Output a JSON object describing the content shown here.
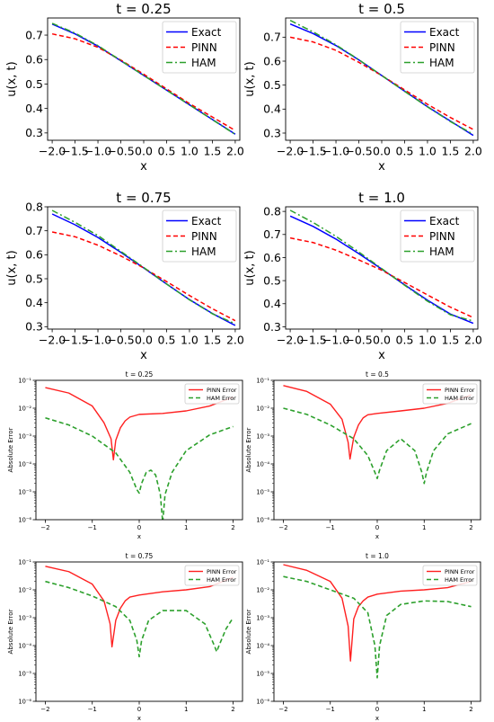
{
  "chart_data": [
    {
      "type": "line",
      "title": "t = 0.25",
      "xlabel": "x",
      "ylabel": "u(x, t)",
      "xlim": [
        -2.1,
        2.1
      ],
      "ylim": [
        0.27,
        0.77
      ],
      "xticks": [
        "-2.0",
        "-1.5",
        "-1.0",
        "-0.5",
        "0.0",
        "0.5",
        "1.0",
        "1.5",
        "2.0"
      ],
      "yticks": [
        "0.3",
        "0.4",
        "0.5",
        "0.6",
        "0.7"
      ],
      "legend": "top-right",
      "series": [
        {
          "name": "Exact",
          "color": "#0000ff",
          "style": "solid",
          "x": [
            -2.0,
            -1.5,
            -1.0,
            -0.5,
            0.0,
            0.5,
            1.0,
            1.5,
            2.0
          ],
          "y": [
            0.745,
            0.705,
            0.655,
            0.595,
            0.535,
            0.475,
            0.415,
            0.355,
            0.295
          ]
        },
        {
          "name": "PINN",
          "color": "#ff0000",
          "style": "dashed",
          "x": [
            -2.0,
            -1.5,
            -1.0,
            -0.5,
            0.0,
            0.5,
            1.0,
            1.5,
            2.0
          ],
          "y": [
            0.705,
            0.685,
            0.65,
            0.598,
            0.54,
            0.48,
            0.42,
            0.365,
            0.31
          ]
        },
        {
          "name": "HAM",
          "color": "#2ca02c",
          "style": "dashdot",
          "x": [
            -2.0,
            -1.5,
            -1.0,
            -0.5,
            0.0,
            0.5,
            1.0,
            1.5,
            2.0
          ],
          "y": [
            0.748,
            0.708,
            0.657,
            0.596,
            0.535,
            0.475,
            0.415,
            0.354,
            0.294
          ]
        }
      ]
    },
    {
      "type": "line",
      "title": "t = 0.5",
      "xlabel": "x",
      "ylabel": "u(x, t)",
      "xlim": [
        -2.1,
        2.1
      ],
      "ylim": [
        0.27,
        0.78
      ],
      "xticks": [
        "-2.0",
        "-1.5",
        "-1.0",
        "-0.5",
        "0.0",
        "0.5",
        "1.0",
        "1.5",
        "2.0"
      ],
      "yticks": [
        "0.3",
        "0.4",
        "0.5",
        "0.6",
        "0.7"
      ],
      "legend": "top-right",
      "series": [
        {
          "name": "Exact",
          "color": "#0000ff",
          "style": "solid",
          "x": [
            -2.0,
            -1.5,
            -1.0,
            -0.5,
            0.0,
            0.5,
            1.0,
            1.5,
            2.0
          ],
          "y": [
            0.755,
            0.715,
            0.665,
            0.605,
            0.54,
            0.475,
            0.41,
            0.35,
            0.29
          ]
        },
        {
          "name": "PINN",
          "color": "#ff0000",
          "style": "dashed",
          "x": [
            -2.0,
            -1.5,
            -1.0,
            -0.5,
            0.0,
            0.5,
            1.0,
            1.5,
            2.0
          ],
          "y": [
            0.7,
            0.68,
            0.645,
            0.595,
            0.54,
            0.48,
            0.42,
            0.365,
            0.315
          ]
        },
        {
          "name": "HAM",
          "color": "#2ca02c",
          "style": "dashdot",
          "x": [
            -2.0,
            -1.5,
            -1.0,
            -0.5,
            0.0,
            0.5,
            1.0,
            1.5,
            2.0
          ],
          "y": [
            0.77,
            0.722,
            0.668,
            0.606,
            0.54,
            0.474,
            0.409,
            0.348,
            0.295
          ]
        }
      ]
    },
    {
      "type": "line",
      "title": "t = 0.75",
      "xlabel": "x",
      "ylabel": "u(x, t)",
      "xlim": [
        -2.1,
        2.1
      ],
      "ylim": [
        0.29,
        0.8
      ],
      "xticks": [
        "-2.0",
        "-1.5",
        "-1.0",
        "-0.5",
        "0.0",
        "0.5",
        "1.0",
        "1.5",
        "2.0"
      ],
      "yticks": [
        "0.3",
        "0.4",
        "0.5",
        "0.6",
        "0.7",
        "0.8"
      ],
      "legend": "top-right",
      "series": [
        {
          "name": "Exact",
          "color": "#0000ff",
          "style": "solid",
          "x": [
            -2.0,
            -1.5,
            -1.0,
            -0.5,
            0.0,
            0.5,
            1.0,
            1.5,
            2.0
          ],
          "y": [
            0.77,
            0.725,
            0.672,
            0.61,
            0.545,
            0.478,
            0.413,
            0.355,
            0.305
          ]
        },
        {
          "name": "PINN",
          "color": "#ff0000",
          "style": "dashed",
          "x": [
            -2.0,
            -1.5,
            -1.0,
            -0.5,
            0.0,
            0.5,
            1.0,
            1.5,
            2.0
          ],
          "y": [
            0.695,
            0.675,
            0.64,
            0.595,
            0.545,
            0.488,
            0.43,
            0.375,
            0.325
          ]
        },
        {
          "name": "HAM",
          "color": "#2ca02c",
          "style": "dashdot",
          "x": [
            -2.0,
            -1.5,
            -1.0,
            -0.5,
            0.0,
            0.5,
            1.0,
            1.5,
            2.0
          ],
          "y": [
            0.785,
            0.735,
            0.68,
            0.614,
            0.547,
            0.478,
            0.412,
            0.354,
            0.312
          ]
        }
      ]
    },
    {
      "type": "line",
      "title": "t = 1.0",
      "xlabel": "x",
      "ylabel": "u(x, t)",
      "xlim": [
        -2.1,
        2.1
      ],
      "ylim": [
        0.29,
        0.82
      ],
      "xticks": [
        "-2.0",
        "-1.5",
        "-1.0",
        "-0.5",
        "0.0",
        "0.5",
        "1.0",
        "1.5",
        "2.0"
      ],
      "yticks": [
        "0.3",
        "0.4",
        "0.5",
        "0.6",
        "0.7",
        "0.8"
      ],
      "legend": "top-right",
      "series": [
        {
          "name": "Exact",
          "color": "#0000ff",
          "style": "solid",
          "x": [
            -2.0,
            -1.5,
            -1.0,
            -0.5,
            0.0,
            0.5,
            1.0,
            1.5,
            2.0
          ],
          "y": [
            0.78,
            0.735,
            0.68,
            0.617,
            0.55,
            0.482,
            0.415,
            0.355,
            0.315
          ]
        },
        {
          "name": "PINN",
          "color": "#ff0000",
          "style": "dashed",
          "x": [
            -2.0,
            -1.5,
            -1.0,
            -0.5,
            0.0,
            0.5,
            1.0,
            1.5,
            2.0
          ],
          "y": [
            0.685,
            0.665,
            0.632,
            0.59,
            0.545,
            0.492,
            0.438,
            0.385,
            0.34
          ]
        },
        {
          "name": "HAM",
          "color": "#2ca02c",
          "style": "dashdot",
          "x": [
            -2.0,
            -1.5,
            -1.0,
            -0.5,
            0.0,
            0.5,
            1.0,
            1.5,
            2.0
          ],
          "y": [
            0.805,
            0.752,
            0.692,
            0.624,
            0.552,
            0.48,
            0.411,
            0.352,
            0.325
          ]
        }
      ]
    },
    {
      "type": "line",
      "title": "t = 0.25",
      "xlabel": "x",
      "ylabel": "Absolute Error",
      "yscale": "log",
      "xlim": [
        -2.2,
        2.2
      ],
      "ylim": [
        1e-06,
        0.1
      ],
      "xticks": [
        "-2",
        "-1",
        "0",
        "1",
        "2"
      ],
      "yticks": [
        "10⁻⁶",
        "10⁻⁵",
        "10⁻⁴",
        "10⁻³",
        "10⁻²",
        "10⁻¹"
      ],
      "legend": "top-right",
      "series": [
        {
          "name": "PINN Error",
          "color": "#ff2020",
          "style": "solid",
          "x": [
            -2.0,
            -1.5,
            -1.0,
            -0.75,
            -0.6,
            -0.55,
            -0.5,
            -0.4,
            -0.3,
            -0.2,
            0.0,
            0.5,
            1.0,
            1.5,
            2.0
          ],
          "y": [
            0.055,
            0.035,
            0.012,
            0.003,
            0.0008,
            0.00014,
            0.0007,
            0.002,
            0.0035,
            0.0048,
            0.006,
            0.0065,
            0.008,
            0.012,
            0.025
          ]
        },
        {
          "name": "HAM Error",
          "color": "#2ca02c",
          "style": "dashed",
          "x": [
            -2.0,
            -1.5,
            -1.0,
            -0.5,
            -0.2,
            -0.05,
            0.0,
            0.05,
            0.15,
            0.25,
            0.35,
            0.45,
            0.5,
            0.55,
            0.7,
            1.0,
            1.5,
            2.0
          ],
          "y": [
            0.0045,
            0.0025,
            0.001,
            0.00025,
            5e-05,
            1.2e-05,
            9e-06,
            2e-05,
            5e-05,
            6e-05,
            4e-05,
            8e-06,
            8e-07,
            8e-06,
            5e-05,
            0.0003,
            0.0011,
            0.0022
          ]
        }
      ]
    },
    {
      "type": "line",
      "title": "t = 0.5",
      "xlabel": "x",
      "ylabel": "Absolute Error",
      "yscale": "log",
      "xlim": [
        -2.2,
        2.2
      ],
      "ylim": [
        1e-06,
        0.1
      ],
      "xticks": [
        "-2",
        "-1",
        "0",
        "1",
        "2"
      ],
      "yticks": [
        "10⁻⁶",
        "10⁻⁵",
        "10⁻⁴",
        "10⁻³",
        "10⁻²",
        "10⁻¹"
      ],
      "legend": "top-right",
      "series": [
        {
          "name": "PINN Error",
          "color": "#ff2020",
          "style": "solid",
          "x": [
            -2.0,
            -1.5,
            -1.0,
            -0.75,
            -0.62,
            -0.58,
            -0.5,
            -0.4,
            -0.3,
            -0.2,
            0.0,
            0.5,
            1.0,
            1.5,
            2.0
          ],
          "y": [
            0.065,
            0.04,
            0.014,
            0.004,
            0.0006,
            0.00015,
            0.0009,
            0.0025,
            0.0045,
            0.0058,
            0.0065,
            0.008,
            0.01,
            0.015,
            0.03
          ]
        },
        {
          "name": "HAM Error",
          "color": "#2ca02c",
          "style": "dashed",
          "x": [
            -2.0,
            -1.5,
            -1.0,
            -0.5,
            -0.2,
            -0.05,
            0.0,
            0.05,
            0.2,
            0.5,
            0.8,
            0.95,
            1.0,
            1.05,
            1.2,
            1.5,
            2.0
          ],
          "y": [
            0.01,
            0.006,
            0.0025,
            0.0008,
            0.0002,
            5e-05,
            3e-05,
            6e-05,
            0.0003,
            0.0008,
            0.0003,
            5e-05,
            2e-05,
            5e-05,
            0.0003,
            0.0012,
            0.0028
          ]
        }
      ]
    },
    {
      "type": "line",
      "title": "t = 0.75",
      "xlabel": "x",
      "ylabel": "Absolute Error",
      "yscale": "log",
      "xlim": [
        -2.2,
        2.2
      ],
      "ylim": [
        1e-06,
        0.1
      ],
      "xticks": [
        "-2",
        "-1",
        "0",
        "1",
        "2"
      ],
      "yticks": [
        "10⁻⁶",
        "10⁻⁵",
        "10⁻⁴",
        "10⁻³",
        "10⁻²",
        "10⁻¹"
      ],
      "legend": "top-right",
      "series": [
        {
          "name": "PINN Error",
          "color": "#ff2020",
          "style": "solid",
          "x": [
            -2.0,
            -1.5,
            -1.0,
            -0.75,
            -0.62,
            -0.58,
            -0.5,
            -0.4,
            -0.3,
            -0.2,
            0.0,
            0.5,
            1.0,
            1.5,
            2.0
          ],
          "y": [
            0.07,
            0.045,
            0.016,
            0.004,
            0.0006,
            9e-05,
            0.0008,
            0.0022,
            0.004,
            0.0055,
            0.0065,
            0.0085,
            0.01,
            0.013,
            0.028
          ]
        },
        {
          "name": "HAM Error",
          "color": "#2ca02c",
          "style": "dashed",
          "x": [
            -2.0,
            -1.5,
            -1.0,
            -0.5,
            -0.2,
            -0.05,
            0.0,
            0.05,
            0.2,
            0.5,
            1.0,
            1.4,
            1.6,
            1.65,
            1.7,
            1.85,
            2.0
          ],
          "y": [
            0.02,
            0.012,
            0.006,
            0.0025,
            0.0008,
            0.00015,
            4e-05,
            0.00015,
            0.0008,
            0.0018,
            0.0018,
            0.0006,
            0.0001,
            6e-05,
            0.0001,
            0.0004,
            0.001
          ]
        }
      ]
    },
    {
      "type": "line",
      "title": "t = 1.0",
      "xlabel": "x",
      "ylabel": "Absolute Error",
      "yscale": "log",
      "xlim": [
        -2.2,
        2.2
      ],
      "ylim": [
        1e-06,
        0.1
      ],
      "xticks": [
        "-2",
        "-1",
        "0",
        "1",
        "2"
      ],
      "yticks": [
        "10⁻⁶",
        "10⁻⁵",
        "10⁻⁴",
        "10⁻³",
        "10⁻²",
        "10⁻¹"
      ],
      "legend": "top-right",
      "series": [
        {
          "name": "PINN Error",
          "color": "#ff2020",
          "style": "solid",
          "x": [
            -2.0,
            -1.5,
            -1.0,
            -0.75,
            -0.62,
            -0.57,
            -0.5,
            -0.4,
            -0.3,
            -0.2,
            0.0,
            0.5,
            1.0,
            1.5,
            2.0
          ],
          "y": [
            0.08,
            0.05,
            0.02,
            0.005,
            0.0005,
            2.8e-05,
            0.0009,
            0.0025,
            0.004,
            0.0055,
            0.007,
            0.009,
            0.01,
            0.012,
            0.02
          ]
        },
        {
          "name": "HAM Error",
          "color": "#2ca02c",
          "style": "dashed",
          "x": [
            -2.0,
            -1.5,
            -1.0,
            -0.5,
            -0.2,
            -0.05,
            0.0,
            0.05,
            0.2,
            0.5,
            1.0,
            1.5,
            2.0
          ],
          "y": [
            0.03,
            0.02,
            0.01,
            0.005,
            0.0015,
            0.0001,
            7e-06,
            0.0001,
            0.0012,
            0.003,
            0.004,
            0.0038,
            0.0025
          ]
        }
      ]
    }
  ]
}
